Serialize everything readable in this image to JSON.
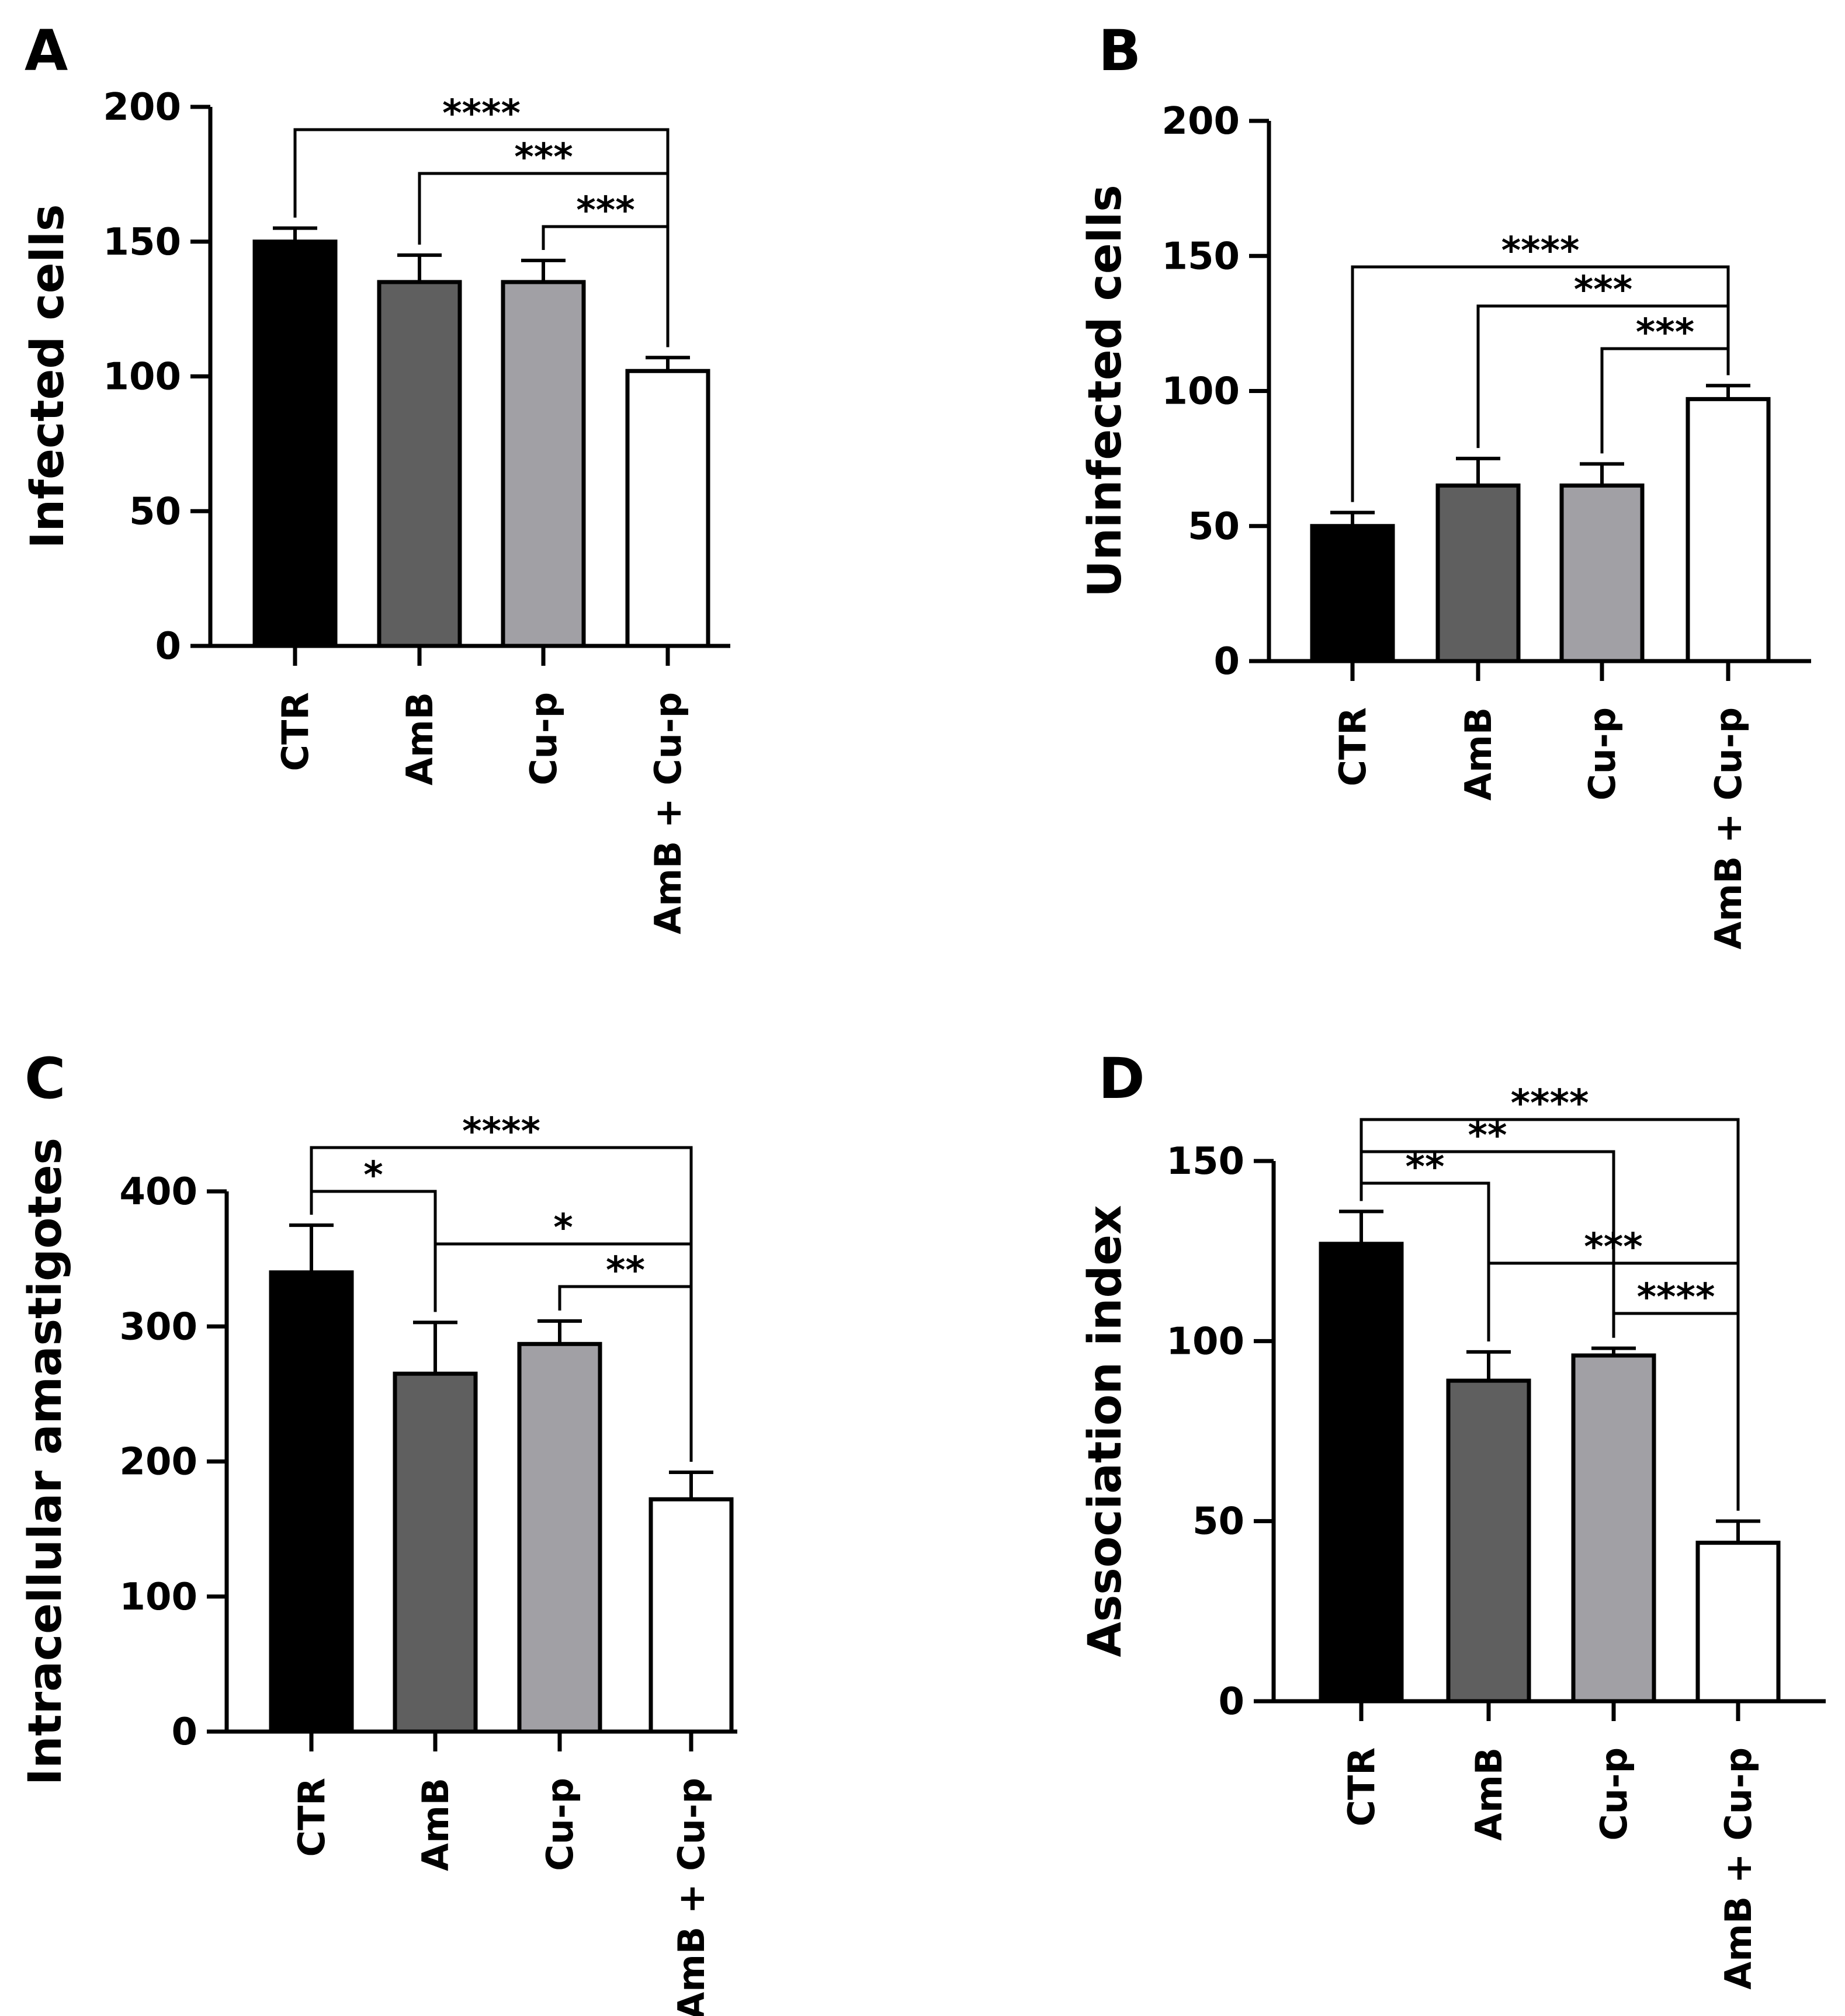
{
  "chart_data": [
    {
      "panel": "A",
      "type": "bar",
      "categories": [
        "CTR",
        "AmB",
        "Cu-p",
        "AmB + Cu-p"
      ],
      "values": [
        150,
        135,
        135,
        102
      ],
      "errors": [
        5,
        10,
        8,
        5
      ],
      "bar_colors": [
        "#000000",
        "#5f5f5f",
        "#a1a0a5",
        "#ffffff"
      ],
      "ylabel": "Infected cells",
      "xlabel": "",
      "ylim": [
        0,
        200
      ],
      "yticks": [
        0,
        50,
        100,
        150,
        200
      ],
      "grid": false,
      "significance": [
        {
          "from": 0,
          "to": 3,
          "label": "****"
        },
        {
          "from": 1,
          "to": 3,
          "label": "***"
        },
        {
          "from": 2,
          "to": 3,
          "label": "***"
        }
      ]
    },
    {
      "panel": "B",
      "type": "bar",
      "categories": [
        "CTR",
        "AmB",
        "Cu-p",
        "AmB + Cu-p"
      ],
      "values": [
        50,
        65,
        65,
        97
      ],
      "errors": [
        5,
        10,
        8,
        5
      ],
      "bar_colors": [
        "#000000",
        "#5f5f5f",
        "#a1a0a5",
        "#ffffff"
      ],
      "ylabel": "Uninfected cells",
      "xlabel": "",
      "ylim": [
        0,
        200
      ],
      "yticks": [
        0,
        50,
        100,
        150,
        200
      ],
      "grid": false,
      "significance": [
        {
          "from": 0,
          "to": 3,
          "label": "****"
        },
        {
          "from": 1,
          "to": 3,
          "label": "***"
        },
        {
          "from": 2,
          "to": 3,
          "label": "***"
        }
      ]
    },
    {
      "panel": "C",
      "type": "bar",
      "categories": [
        "CTR",
        "AmB",
        "Cu-p",
        "AmB + Cu-p"
      ],
      "values": [
        340,
        265,
        287,
        172
      ],
      "errors": [
        35,
        38,
        17,
        20
      ],
      "bar_colors": [
        "#000000",
        "#5f5f5f",
        "#a1a0a5",
        "#ffffff"
      ],
      "ylabel": "Intracellular amastigotes",
      "xlabel": "",
      "ylim": [
        0,
        400
      ],
      "yticks": [
        0,
        100,
        200,
        300,
        400
      ],
      "grid": false,
      "significance": [
        {
          "from": 0,
          "to": 3,
          "label": "****"
        },
        {
          "from": 0,
          "to": 1,
          "label": "*"
        },
        {
          "from": 1,
          "to": 3,
          "label": "*"
        },
        {
          "from": 2,
          "to": 3,
          "label": "**"
        }
      ]
    },
    {
      "panel": "D",
      "type": "bar",
      "categories": [
        "CTR",
        "AmB",
        "Cu-p",
        "AmB + Cu-p"
      ],
      "values": [
        127,
        89,
        96,
        44
      ],
      "errors": [
        9,
        8,
        2,
        6
      ],
      "bar_colors": [
        "#000000",
        "#5f5f5f",
        "#a1a0a5",
        "#ffffff"
      ],
      "ylabel": "Association index",
      "xlabel": "",
      "ylim": [
        0,
        150
      ],
      "yticks": [
        0,
        50,
        100,
        150
      ],
      "grid": false,
      "significance": [
        {
          "from": 0,
          "to": 3,
          "label": "****"
        },
        {
          "from": 0,
          "to": 2,
          "label": "**"
        },
        {
          "from": 0,
          "to": 1,
          "label": "**"
        },
        {
          "from": 1,
          "to": 3,
          "label": "***"
        },
        {
          "from": 2,
          "to": 3,
          "label": "****"
        }
      ]
    }
  ]
}
